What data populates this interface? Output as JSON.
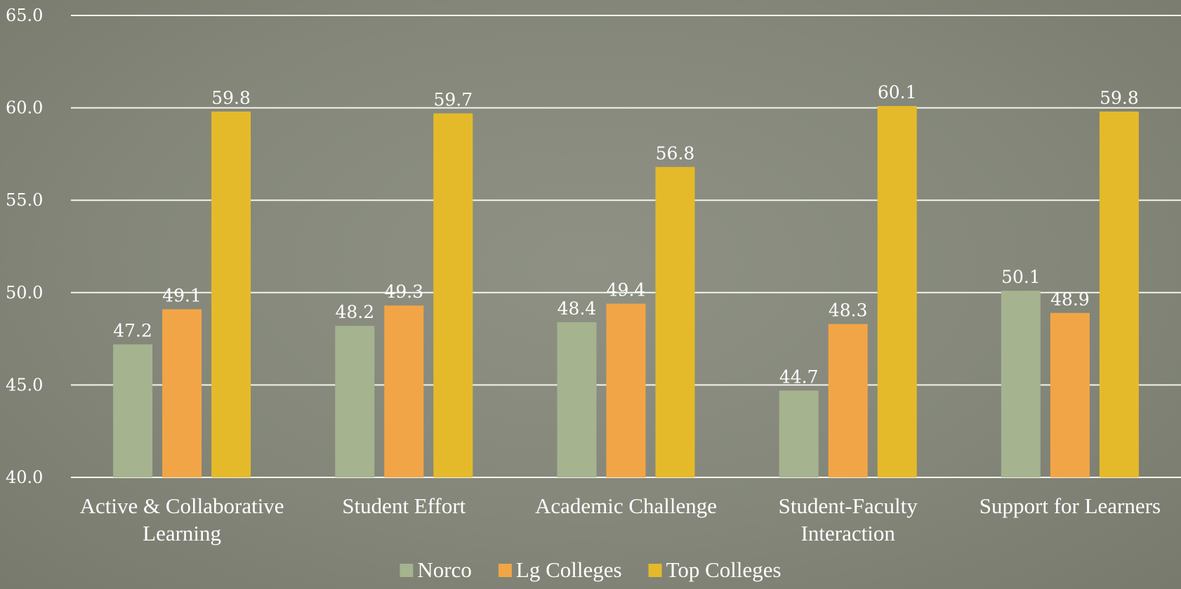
{
  "chart_data": {
    "type": "bar",
    "title": "",
    "xlabel": "",
    "ylabel": "",
    "ylim": [
      40,
      65
    ],
    "yticks": [
      "40.0",
      "45.0",
      "50.0",
      "55.0",
      "60.0",
      "65.0"
    ],
    "grid": true,
    "legend_position": "bottom",
    "categories": [
      [
        "Active & Collaborative",
        "Learning"
      ],
      [
        "Student Effort"
      ],
      [
        "Academic Challenge"
      ],
      [
        "Student-Faculty",
        "Interaction"
      ],
      [
        "Support for Learners"
      ]
    ],
    "series": [
      {
        "name": "Norco",
        "color": "#a5b38f",
        "values": [
          47.2,
          48.2,
          48.4,
          44.7,
          50.1
        ]
      },
      {
        "name": "Lg Colleges",
        "color": "#f2a546",
        "values": [
          49.1,
          49.3,
          49.4,
          48.3,
          48.9
        ]
      },
      {
        "name": "Top Colleges",
        "color": "#e5ba2a",
        "values": [
          59.8,
          59.7,
          56.8,
          60.1,
          59.8
        ]
      }
    ]
  }
}
